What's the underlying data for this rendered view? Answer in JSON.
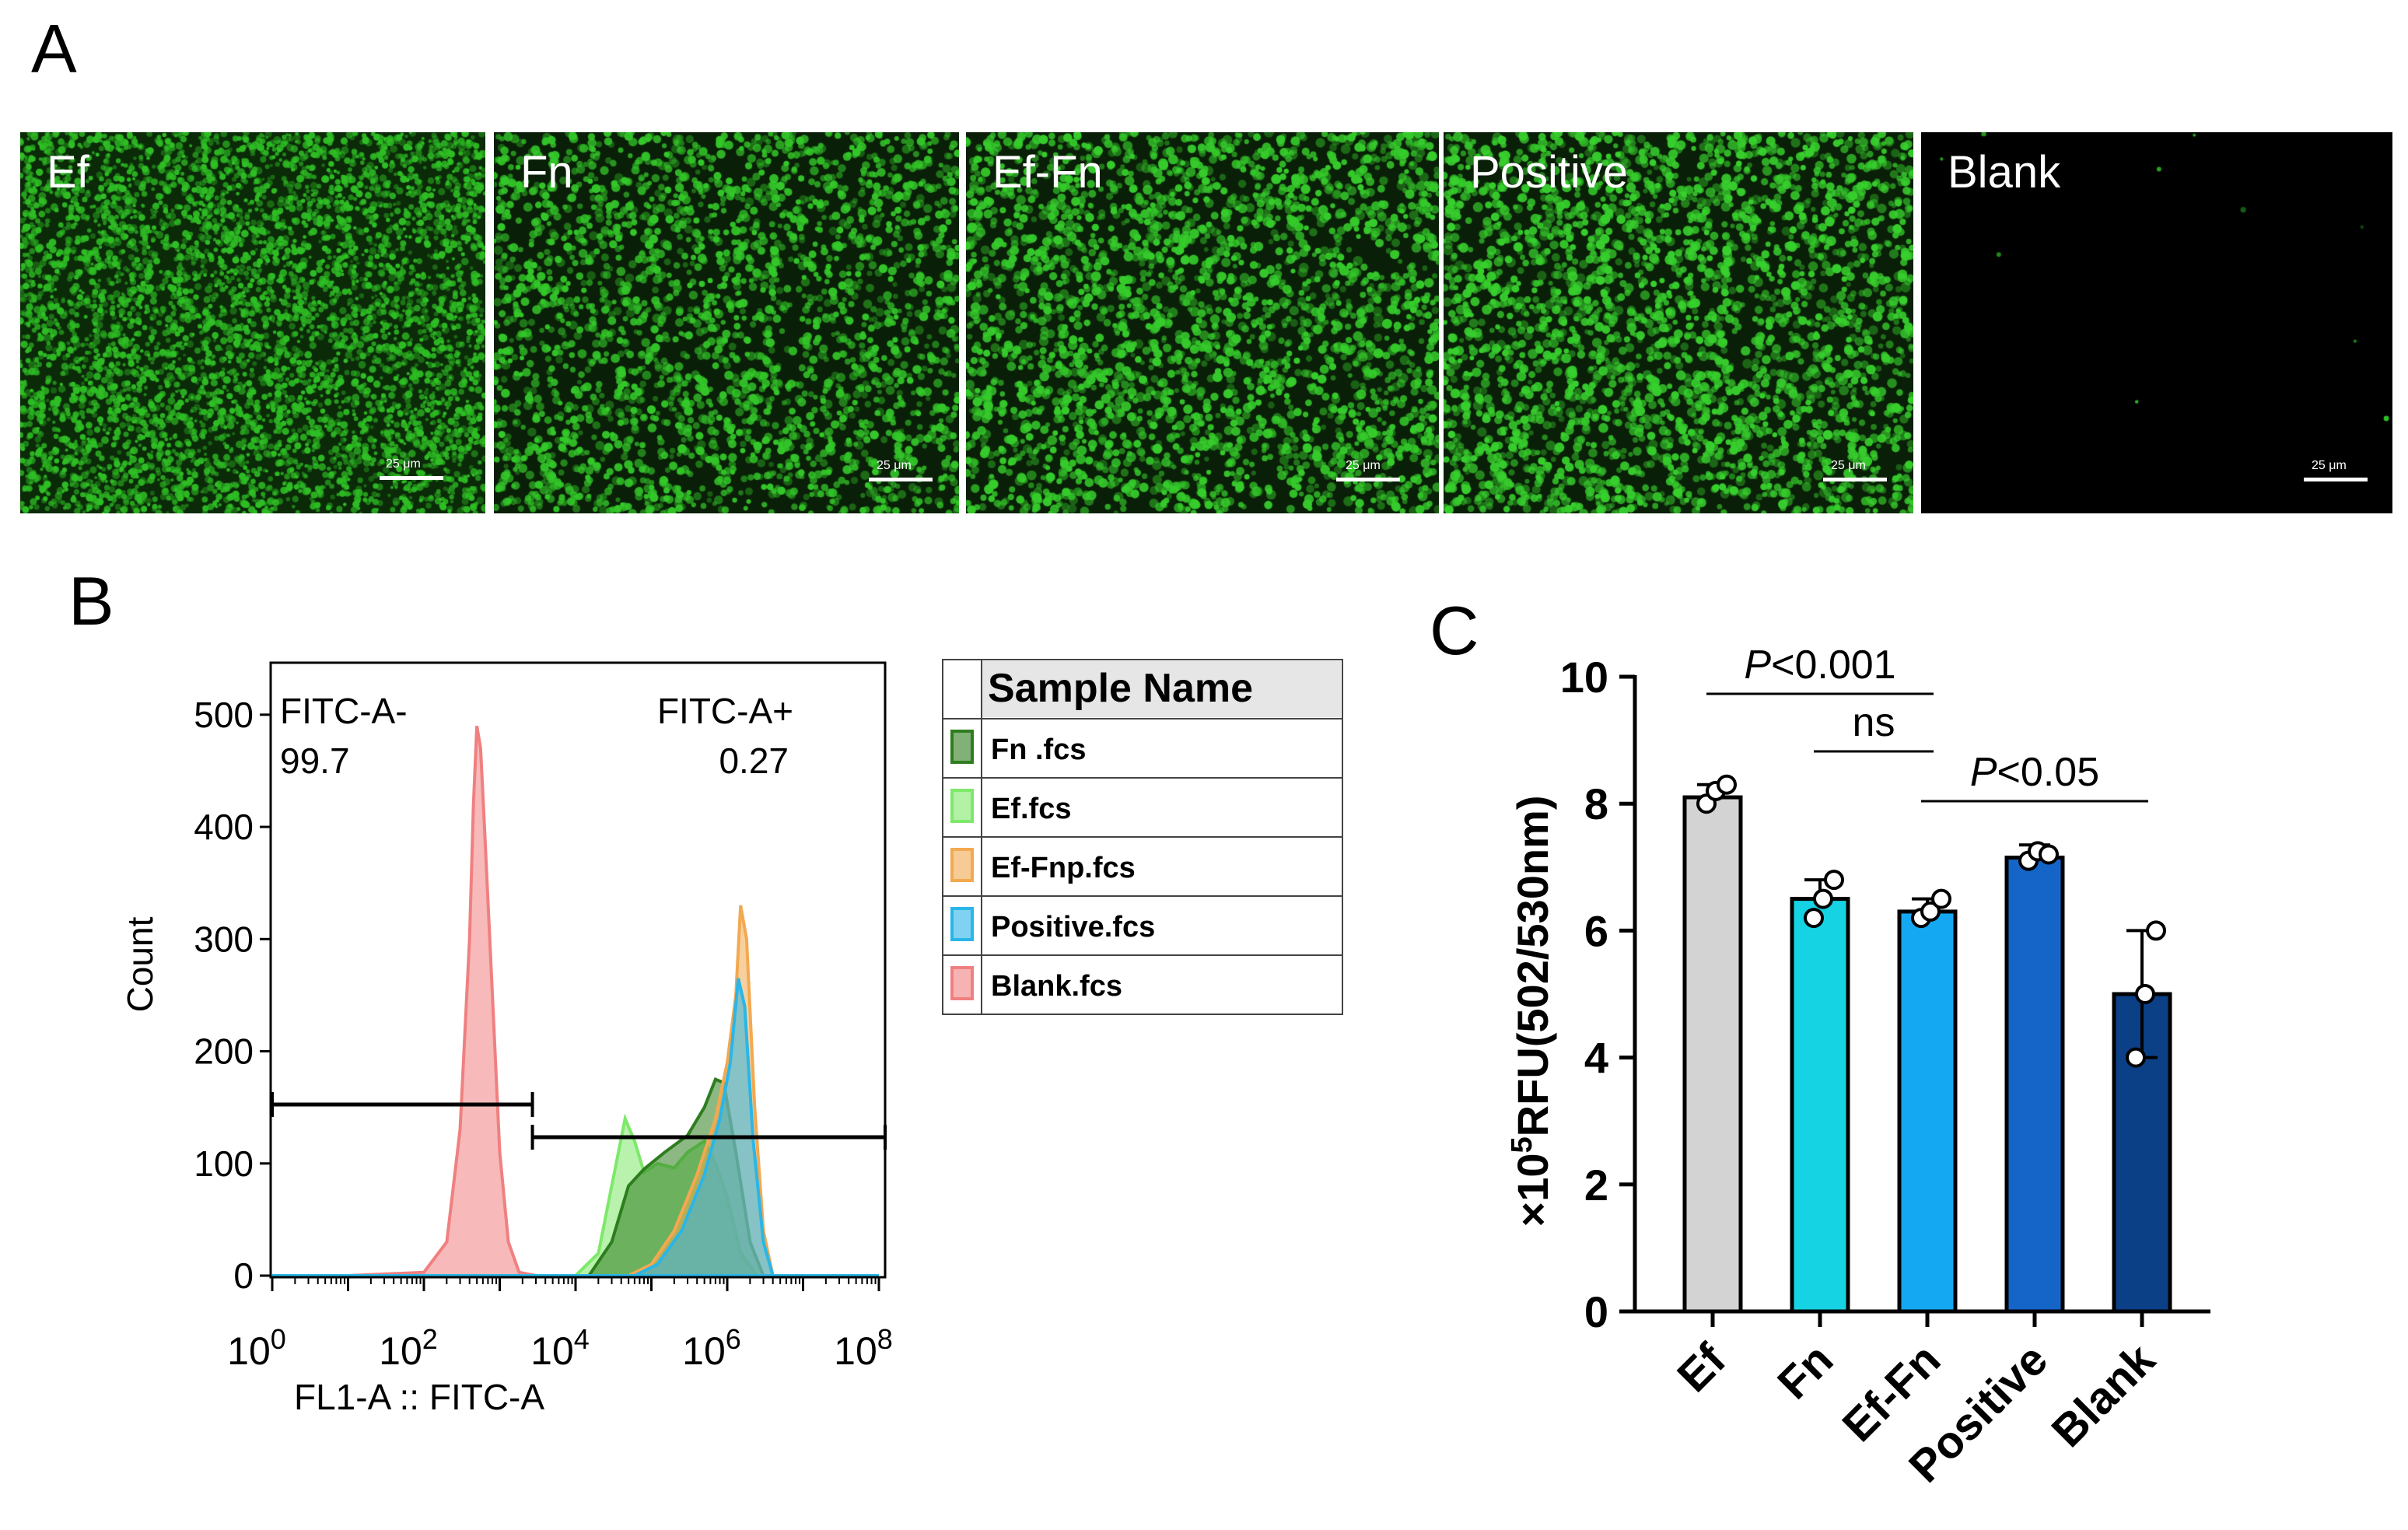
{
  "panel_letters": {
    "a": "A",
    "b": "B",
    "c": "C"
  },
  "panel_a": {
    "images": [
      {
        "label": "Ef",
        "scale_bar": "25 μm",
        "background": "#0b2a08",
        "dot_color": "#2fbf25",
        "density": "very high, small cells"
      },
      {
        "label": "Fn",
        "scale_bar": "25 μm",
        "background": "#0a1f07",
        "dot_color": "#34c82a",
        "density": "high"
      },
      {
        "label": "Ef-Fn",
        "scale_bar": "25 μm",
        "background": "#0a1f07",
        "dot_color": "#36cc2c",
        "density": "high"
      },
      {
        "label": "Positive",
        "scale_bar": "25 μm",
        "background": "#0a1f07",
        "dot_color": "#38d02e",
        "density": "high"
      },
      {
        "label": "Blank",
        "scale_bar": "25 μm",
        "background": "#000000",
        "dot_color": "#2fbf25",
        "density": "nearly empty"
      }
    ]
  },
  "chart_data": [
    {
      "type": "area",
      "panel": "B",
      "xlabel": "FL1-A :: FITC-A",
      "ylabel": "Count",
      "x_scale": "log",
      "xlim": [
        1,
        100000000
      ],
      "x_ticks": [
        "10^0",
        "10^2",
        "10^4",
        "10^6",
        "10^8"
      ],
      "ylim": [
        0,
        520
      ],
      "y_ticks": [
        0,
        100,
        200,
        300,
        400,
        500
      ],
      "gates": [
        {
          "name": "FITC-A-",
          "value": "99.7"
        },
        {
          "name": "FITC-A+",
          "value": "0.27"
        }
      ],
      "legend": {
        "header": "Sample Name",
        "placement": "right",
        "entries": [
          {
            "name": "Fn   .fcs",
            "color": "#2e7d1e"
          },
          {
            "name": "Ef.fcs",
            "color": "#7ee86a"
          },
          {
            "name": "Ef-Fnp.fcs",
            "color": "#f2a950"
          },
          {
            "name": "Positive.fcs",
            "color": "#29b6e8"
          },
          {
            "name": "Blank.fcs",
            "color": "#f08080"
          }
        ]
      },
      "series": [
        {
          "name": "Blank.fcs",
          "color": "#f08080",
          "points": [
            [
              1,
              0
            ],
            [
              10,
              0
            ],
            [
              100,
              3
            ],
            [
              200,
              30
            ],
            [
              300,
              130
            ],
            [
              400,
              300
            ],
            [
              450,
              420
            ],
            [
              500,
              490
            ],
            [
              560,
              470
            ],
            [
              630,
              400
            ],
            [
              800,
              250
            ],
            [
              1000,
              110
            ],
            [
              1300,
              30
            ],
            [
              1800,
              3
            ],
            [
              3000,
              0
            ],
            [
              100000000,
              0
            ]
          ]
        },
        {
          "name": "Ef.fcs",
          "color": "#7ee86a",
          "points": [
            [
              1,
              0
            ],
            [
              10000,
              0
            ],
            [
              20000,
              20
            ],
            [
              30000,
              80
            ],
            [
              45000,
              140
            ],
            [
              60000,
              120
            ],
            [
              80000,
              92
            ],
            [
              120000,
              100
            ],
            [
              200000,
              96
            ],
            [
              300000,
              110
            ],
            [
              500000,
              120
            ],
            [
              700000,
              100
            ],
            [
              1000000,
              70
            ],
            [
              1500000,
              20
            ],
            [
              2500000,
              0
            ],
            [
              100000000,
              0
            ]
          ]
        },
        {
          "name": "Fn   .fcs",
          "color": "#2e7d1e",
          "points": [
            [
              1,
              0
            ],
            [
              15000,
              0
            ],
            [
              30000,
              30
            ],
            [
              50000,
              80
            ],
            [
              80000,
              95
            ],
            [
              150000,
              110
            ],
            [
              300000,
              125
            ],
            [
              500000,
              150
            ],
            [
              700000,
              175
            ],
            [
              900000,
              172
            ],
            [
              1300000,
              110
            ],
            [
              2000000,
              30
            ],
            [
              3000000,
              0
            ],
            [
              100000000,
              0
            ]
          ]
        },
        {
          "name": "Ef-Fnp.fcs",
          "color": "#f2a950",
          "points": [
            [
              1,
              0
            ],
            [
              50000,
              0
            ],
            [
              100000,
              10
            ],
            [
              200000,
              40
            ],
            [
              400000,
              90
            ],
            [
              700000,
              140
            ],
            [
              1000000,
              190
            ],
            [
              1300000,
              250
            ],
            [
              1500000,
              330
            ],
            [
              1800000,
              300
            ],
            [
              2300000,
              150
            ],
            [
              3000000,
              40
            ],
            [
              4000000,
              0
            ],
            [
              100000000,
              0
            ]
          ]
        },
        {
          "name": "Positive.fcs",
          "color": "#29b6e8",
          "points": [
            [
              1,
              0
            ],
            [
              60000,
              0
            ],
            [
              120000,
              10
            ],
            [
              250000,
              40
            ],
            [
              500000,
              90
            ],
            [
              800000,
              140
            ],
            [
              1100000,
              190
            ],
            [
              1400000,
              265
            ],
            [
              1700000,
              240
            ],
            [
              2200000,
              120
            ],
            [
              3000000,
              30
            ],
            [
              4000000,
              0
            ],
            [
              100000000,
              0
            ]
          ]
        }
      ]
    },
    {
      "type": "bar",
      "panel": "C",
      "ylabel": "×10^5RFU(502/530nm)",
      "categories": [
        "Ef",
        "Fn",
        "Ef-Fn",
        "Positive",
        "Blank"
      ],
      "values": [
        8.1,
        6.5,
        6.3,
        7.15,
        5.0
      ],
      "errors": [
        0.2,
        0.3,
        0.2,
        0.2,
        1.0
      ],
      "points": [
        [
          8.0,
          8.2,
          8.3
        ],
        [
          6.2,
          6.5,
          6.8
        ],
        [
          6.2,
          6.3,
          6.5
        ],
        [
          7.1,
          7.25,
          7.2
        ],
        [
          4.0,
          5.0,
          6.0
        ]
      ],
      "colors": [
        "#d3d3d3",
        "#16d3e3",
        "#14a8f2",
        "#1565c8",
        "#0b3f86"
      ],
      "ylim": [
        0,
        10
      ],
      "y_ticks": [
        0,
        2,
        4,
        6,
        8,
        10
      ],
      "significance": [
        {
          "from": "Ef",
          "to": "Ef-Fn",
          "label": "P<0.001"
        },
        {
          "from": "Fn",
          "to": "Ef-Fn",
          "label": "ns"
        },
        {
          "from": "Ef-Fn",
          "to": "Blank",
          "label": "P<0.05"
        }
      ]
    }
  ]
}
